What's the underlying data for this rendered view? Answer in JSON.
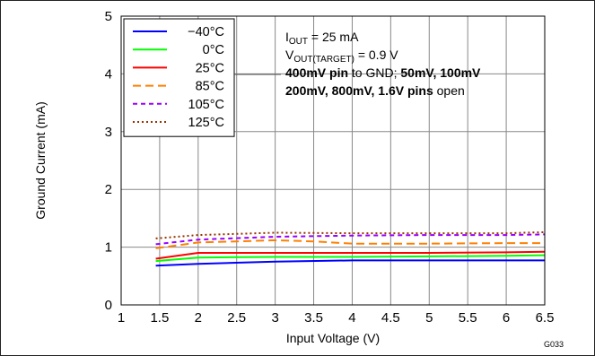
{
  "chart_data": {
    "type": "line",
    "xlabel": "Input Voltage (V)",
    "ylabel": "Ground Current (mA)",
    "xlim": [
      1,
      6.5
    ],
    "ylim": [
      0,
      5
    ],
    "xticks": [
      "1",
      "1.5",
      "2",
      "2.5",
      "3",
      "3.5",
      "4",
      "4.5",
      "5",
      "5.5",
      "6",
      "6.5"
    ],
    "yticks": [
      "0",
      "1",
      "2",
      "3",
      "4",
      "5"
    ],
    "grid": true,
    "legend_position": "top-left",
    "series": [
      {
        "name": "−40°C",
        "color": "#0000ff",
        "dash": "solid",
        "x": [
          1.45,
          2,
          3,
          4,
          5,
          6,
          6.5
        ],
        "y": [
          0.68,
          0.71,
          0.75,
          0.77,
          0.77,
          0.77,
          0.77
        ]
      },
      {
        "name": "0°C",
        "color": "#00ff00",
        "dash": "solid",
        "x": [
          1.45,
          2,
          3,
          4,
          5,
          6,
          6.5
        ],
        "y": [
          0.76,
          0.82,
          0.83,
          0.83,
          0.84,
          0.85,
          0.86
        ]
      },
      {
        "name": "25°C",
        "color": "#ff0000",
        "dash": "solid",
        "x": [
          1.45,
          2,
          3,
          4,
          5,
          6,
          6.5
        ],
        "y": [
          0.8,
          0.9,
          0.9,
          0.9,
          0.9,
          0.91,
          0.92
        ]
      },
      {
        "name": "85°C",
        "color": "#ff8000",
        "dash": "long-dash",
        "x": [
          1.45,
          2,
          2.5,
          3,
          3.5,
          4,
          5,
          6,
          6.5
        ],
        "y": [
          0.98,
          1.08,
          1.1,
          1.12,
          1.1,
          1.06,
          1.06,
          1.07,
          1.07
        ]
      },
      {
        "name": "105°C",
        "color": "#9900ff",
        "dash": "short-dash",
        "x": [
          1.45,
          2,
          3,
          4,
          5,
          6,
          6.5
        ],
        "y": [
          1.05,
          1.13,
          1.18,
          1.2,
          1.21,
          1.21,
          1.22
        ]
      },
      {
        "name": "125°C",
        "color": "#993300",
        "dash": "dotted",
        "x": [
          1.45,
          2,
          3,
          4,
          5,
          6,
          6.5
        ],
        "y": [
          1.15,
          1.21,
          1.25,
          1.24,
          1.24,
          1.24,
          1.26
        ]
      }
    ],
    "annotations": {
      "iout_main": "I",
      "iout_sub": "OUT",
      "iout_rest": " = 25 mA",
      "vout_main": "V",
      "vout_sub": "OUT(TARGET)",
      "vout_rest": " = 0.9 V",
      "line3_bold1": "400mV pin",
      "line3_normal": " to GND; ",
      "line3_bold2": "50mV, 100mV",
      "line4_bold": "200mV, 800mV, 1.6V pins",
      "line4_normal": " open"
    },
    "figure_id": "G033"
  }
}
